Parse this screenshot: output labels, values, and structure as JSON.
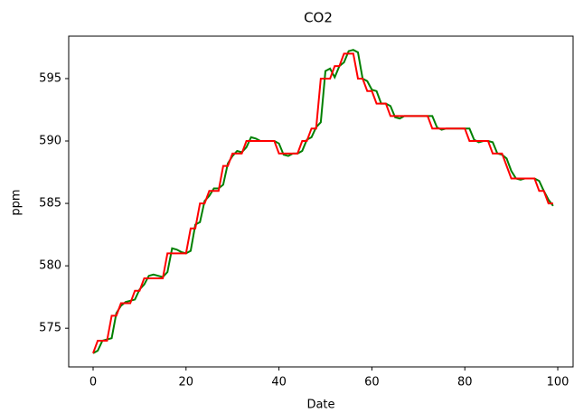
{
  "chart_data": {
    "type": "line",
    "title": "CO2",
    "x_label": "Date",
    "y_label": "ppm",
    "x": [
      0,
      1,
      2,
      3,
      4,
      5,
      6,
      7,
      8,
      9,
      10,
      11,
      12,
      13,
      14,
      15,
      16,
      17,
      18,
      19,
      20,
      21,
      22,
      23,
      24,
      25,
      26,
      27,
      28,
      29,
      30,
      31,
      32,
      33,
      34,
      35,
      36,
      37,
      38,
      39,
      40,
      41,
      42,
      43,
      44,
      45,
      46,
      47,
      48,
      49,
      50,
      51,
      52,
      53,
      54,
      55,
      56,
      57,
      58,
      59,
      60,
      61,
      62,
      63,
      64,
      65,
      66,
      67,
      68,
      69,
      70,
      71,
      72,
      73,
      74,
      75,
      76,
      77,
      78,
      79,
      80,
      81,
      82,
      83,
      84,
      85,
      86,
      87,
      88,
      89,
      90,
      91,
      92,
      93,
      94,
      95,
      96,
      97,
      98,
      99
    ],
    "series": [
      {
        "color": "#008000",
        "values": [
          573,
          573.2,
          574,
          574.1,
          574.2,
          576.2,
          576.8,
          577.1,
          577.2,
          577.3,
          578.1,
          578.5,
          579.2,
          579.3,
          579.2,
          579.1,
          579.5,
          581.4,
          581.3,
          581.1,
          581,
          581.2,
          583.3,
          583.5,
          585.2,
          585.6,
          586.2,
          586.2,
          586.5,
          588.2,
          588.8,
          589.2,
          589.1,
          589.5,
          590.3,
          590.2,
          590,
          590,
          590,
          590,
          589.8,
          588.9,
          588.8,
          589,
          589,
          589.2,
          590.1,
          590.3,
          591.1,
          591.5,
          595.6,
          595.8,
          595.1,
          596,
          596.3,
          597.2,
          597.3,
          597.1,
          595,
          594.8,
          594.1,
          594,
          593,
          593,
          592.8,
          591.9,
          591.8,
          592,
          592,
          592,
          592,
          592,
          592,
          592,
          591.1,
          590.9,
          591,
          591,
          591,
          591,
          591,
          591,
          590.1,
          589.9,
          590,
          590,
          589.9,
          589,
          588.9,
          588.6,
          587.6,
          587,
          586.9,
          587,
          587,
          587,
          586.8,
          586,
          585.3,
          584.8
        ]
      },
      {
        "color": "#ff0000",
        "values": [
          573,
          574,
          574,
          574,
          576,
          576,
          577,
          577,
          577,
          578,
          578,
          579,
          579,
          579,
          579,
          579,
          581,
          581,
          581,
          581,
          581,
          583,
          583,
          585,
          585,
          586,
          586,
          586,
          588,
          588,
          589,
          589,
          589,
          590,
          590,
          590,
          590,
          590,
          590,
          590,
          589,
          589,
          589,
          589,
          589,
          590,
          590,
          591,
          591,
          595,
          595,
          595,
          596,
          596,
          597,
          597,
          597,
          595,
          595,
          594,
          594,
          593,
          593,
          593,
          592,
          592,
          592,
          592,
          592,
          592,
          592,
          592,
          592,
          591,
          591,
          591,
          591,
          591,
          591,
          591,
          591,
          590,
          590,
          590,
          590,
          590,
          589,
          589,
          589,
          588,
          587,
          587,
          587,
          587,
          587,
          587,
          586,
          586,
          585,
          585
        ]
      }
    ],
    "xlim": [
      -5.25,
      103.3
    ],
    "ylim": [
      571.9,
      598.4
    ],
    "xticks": [
      0,
      20,
      40,
      60,
      80,
      100
    ],
    "yticks": [
      575,
      580,
      585,
      590,
      595
    ]
  }
}
